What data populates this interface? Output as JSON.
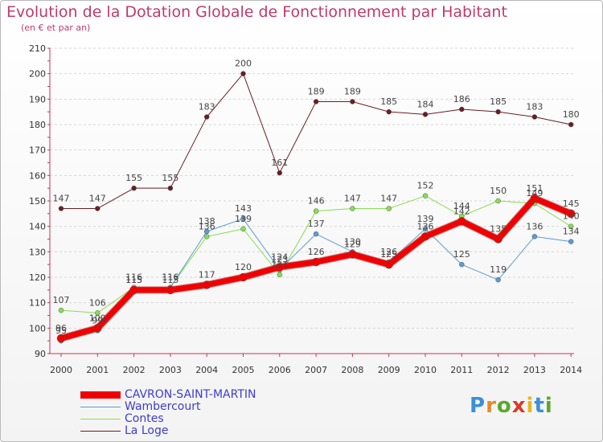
{
  "title": "Evolution de la Dotation Globale de Fonctionnement par Habitant",
  "subtitle": "(en € et par an)",
  "logo": {
    "text": "Proxiti",
    "letters": [
      "P",
      "r",
      "o",
      "x",
      "i",
      "t",
      "i"
    ],
    "colors": [
      "#3b8fd9",
      "#e28b2a",
      "#5aa82e",
      "#d93a2b",
      "#e8b81c",
      "#3b8fd9",
      "#5aa82e"
    ]
  },
  "chart_data": {
    "type": "line",
    "title": "Evolution de la Dotation Globale de Fonctionnement par Habitant",
    "subtitle": "(en € et par an)",
    "x": [
      "2000",
      "2001",
      "2002",
      "2003",
      "2004",
      "2005",
      "2006",
      "2007",
      "2008",
      "2009",
      "2010",
      "2011",
      "2012",
      "2013",
      "2014"
    ],
    "ylim": [
      90,
      210
    ],
    "yticks": [
      "90",
      "100",
      "110",
      "120",
      "130",
      "140",
      "150",
      "160",
      "170",
      "180",
      "190",
      "200",
      "210"
    ],
    "grid": "horizontal dashed",
    "legend_position": "bottom-left",
    "series": [
      {
        "name": "La Loge",
        "color": "#6b1d22",
        "width": 1,
        "values": [
          147,
          147,
          155,
          155,
          183,
          200,
          161,
          189,
          189,
          185,
          184,
          186,
          185,
          183,
          180
        ],
        "labels": [
          "147",
          "147",
          "155",
          "155",
          "183",
          "200",
          "161",
          "189",
          "189",
          "185",
          "184",
          "186",
          "185",
          "183",
          "180"
        ]
      },
      {
        "name": "Contes",
        "color": "#88de50",
        "width": 1,
        "values": [
          107,
          106,
          116,
          116,
          136,
          139,
          121,
          146,
          147,
          147,
          152,
          144,
          150,
          149,
          140
        ],
        "labels": [
          "107",
          "106",
          "116",
          "116",
          "136",
          "139",
          "121",
          "146",
          "147",
          "147",
          "152",
          "144",
          "150",
          "149",
          "140"
        ]
      },
      {
        "name": "Wambercourt",
        "color": "#5a9bd4",
        "width": 1,
        "values": [
          95,
          99,
          115,
          116,
          138,
          143,
          123,
          137,
          130,
          126,
          139,
          125,
          119,
          136,
          134
        ],
        "labels": [
          "95",
          "99",
          "115",
          "116",
          "138",
          "143",
          "123",
          "137",
          "130",
          "126",
          "139",
          "125",
          "119",
          "136",
          "134"
        ]
      },
      {
        "name": "CAVRON-SAINT-MARTIN",
        "color": "#f00000",
        "width": 7,
        "values": [
          96,
          100,
          115,
          115,
          117,
          120,
          124,
          126,
          129,
          125,
          136,
          142,
          135,
          151,
          145
        ],
        "labels": [
          "96",
          "100",
          "115",
          "115",
          "117",
          "120",
          "124",
          "126",
          "129",
          "125",
          "136",
          "142",
          "135",
          "151",
          "145"
        ]
      }
    ],
    "legend": [
      "CAVRON-SAINT-MARTIN",
      "Wambercourt",
      "Contes",
      "La Loge"
    ]
  }
}
